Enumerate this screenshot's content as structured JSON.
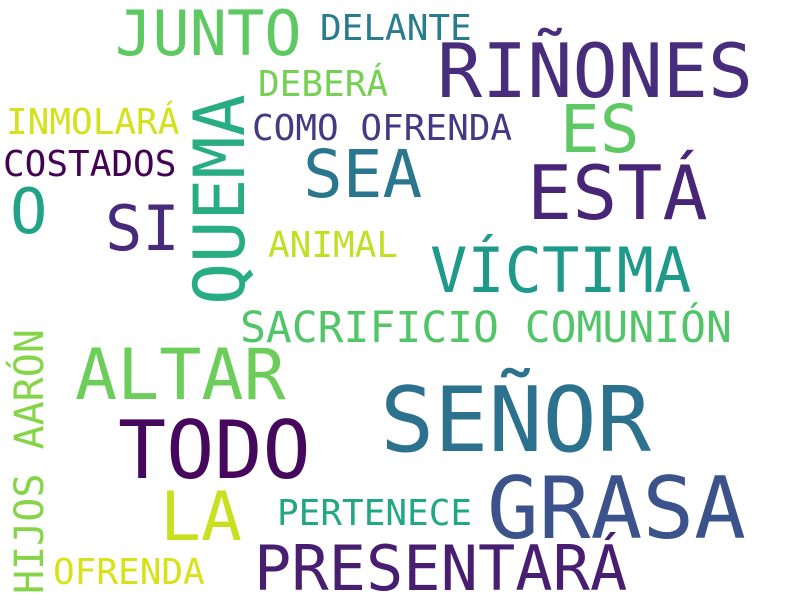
{
  "words": [
    {
      "text": "SEÑOR",
      "color": "#2c728e"
    },
    {
      "text": "GRASA",
      "color": "#3b528b"
    },
    {
      "text": "RIÑONES",
      "color": "#472d7b"
    },
    {
      "text": "ESTÁ",
      "color": "#482576"
    },
    {
      "text": "TODO",
      "color": "#46085c"
    },
    {
      "text": "PRESENTARÁ",
      "color": "#481f70"
    },
    {
      "text": "ALTAR",
      "color": "#6ccd5a"
    },
    {
      "text": "QUEMA",
      "color": "#27ad81"
    },
    {
      "text": "VÍCTIMA",
      "color": "#1f9a8a"
    },
    {
      "text": "SEA",
      "color": "#2a768e"
    },
    {
      "text": "JUNTO",
      "color": "#5ec962"
    },
    {
      "text": "ES",
      "color": "#5ec962"
    },
    {
      "text": "LA",
      "color": "#c8e020"
    },
    {
      "text": "SI",
      "color": "#472a7a"
    },
    {
      "text": "O",
      "color": "#20a386"
    },
    {
      "text": "SACRIFICIO COMUNIÓN",
      "color": "#52c569"
    },
    {
      "text": "HIJOS AARÓN",
      "color": "#86d549"
    },
    {
      "text": "COMO OFRENDA",
      "color": "#443983"
    },
    {
      "text": "PERTENECE",
      "color": "#22a785"
    },
    {
      "text": "DELANTE",
      "color": "#287c8e"
    },
    {
      "text": "DEBERÁ",
      "color": "#75d054"
    },
    {
      "text": "INMOLARÁ",
      "color": "#d2e21b"
    },
    {
      "text": "COSTADOS",
      "color": "#440154"
    },
    {
      "text": "ANIMAL",
      "color": "#c0df25"
    },
    {
      "text": "OFRENDA",
      "color": "#d8e219"
    }
  ]
}
